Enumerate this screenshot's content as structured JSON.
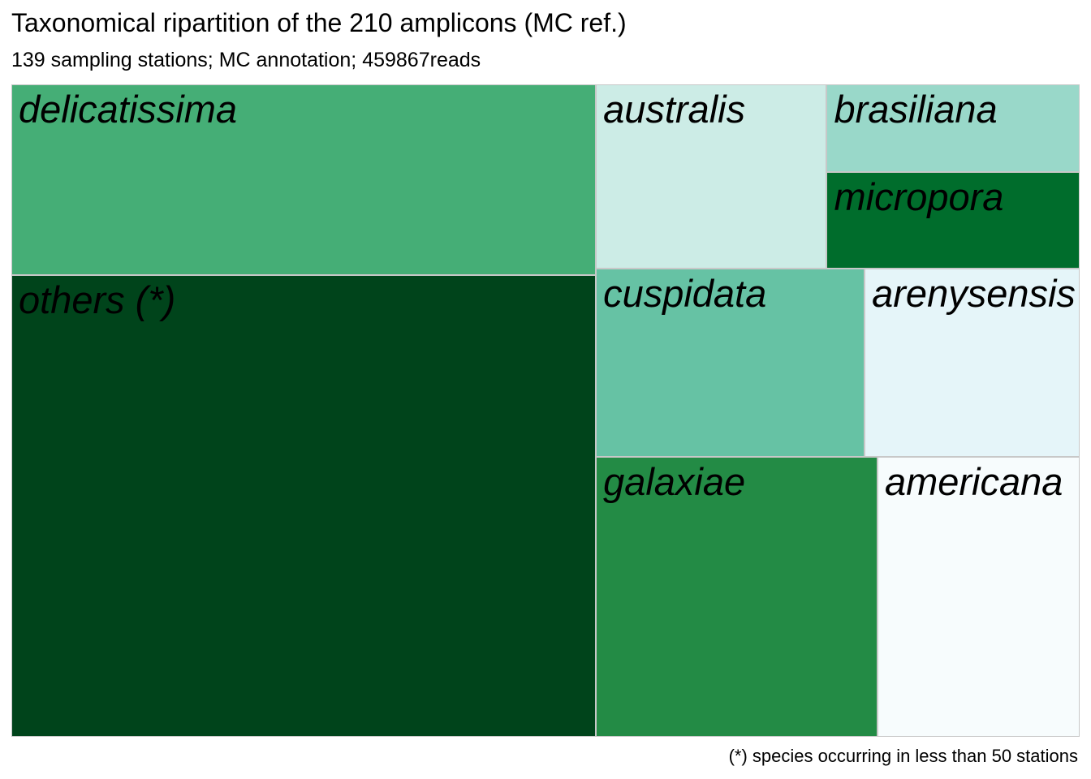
{
  "chart_data": {
    "type": "treemap",
    "title": "Taxonomical ripartition of the 210 amplicons (MC ref.)",
    "subtitle": "139 sampling stations; MC annotation; 459867reads",
    "caption": "(*) species occurring in less than 50 stations",
    "tiles": [
      {
        "label": "others (*)",
        "value": 26.7,
        "color": "#00441b"
      },
      {
        "label": "delicatissima",
        "value": 11.0,
        "color": "#45ae76"
      },
      {
        "label": "galaxiae",
        "value": 7.8,
        "color": "#238b45"
      },
      {
        "label": "americana",
        "value": 5.6,
        "color": "#f7fcfd"
      },
      {
        "label": "cuspidata",
        "value": 5.0,
        "color": "#66c2a4"
      },
      {
        "label": "arenysensis",
        "value": 4.0,
        "color": "#e5f5f9"
      },
      {
        "label": "australis",
        "value": 4.2,
        "color": "#ccece6"
      },
      {
        "label": "brasiliana",
        "value": 2.2,
        "color": "#99d8c9"
      },
      {
        "label": "micropora",
        "value": 2.4,
        "color": "#006d2c"
      }
    ]
  }
}
